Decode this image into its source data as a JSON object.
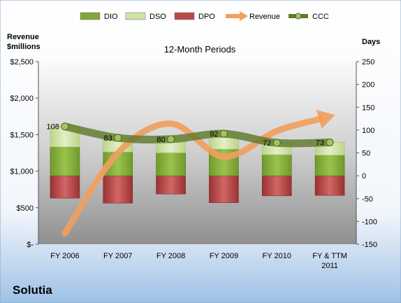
{
  "chart_data": {
    "type": "bar",
    "title": "12-Month Periods",
    "company": "Solutia",
    "y_left_label": [
      "Revenue",
      "$millions"
    ],
    "y_right_label": "Days",
    "categories": [
      [
        "FY 2006"
      ],
      [
        "FY 2007"
      ],
      [
        "FY 2008"
      ],
      [
        "FY 2009"
      ],
      [
        "FY 2010"
      ],
      [
        "FY & TTM",
        "2011"
      ]
    ],
    "y_left_ticks": [
      "$-",
      "$500",
      "$1,000",
      "$1,500",
      "$2,000",
      "$2,500"
    ],
    "y_right_ticks": [
      "-150",
      "-100",
      "-50",
      "0",
      "50",
      "100",
      "150",
      "200",
      "250"
    ],
    "y_left_range": [
      0,
      2500
    ],
    "y_right_range": [
      -150,
      250
    ],
    "legend_position": "top",
    "legend": [
      {
        "name": "DIO",
        "kind": "bar",
        "color": "#82a63a"
      },
      {
        "name": "DSO",
        "kind": "bar",
        "color": "#cfe3a6"
      },
      {
        "name": "DPO",
        "kind": "bar",
        "color": "#b84a4a"
      },
      {
        "name": "Revenue",
        "kind": "arrow",
        "color": "#f0a060"
      },
      {
        "name": "CCC",
        "kind": "line",
        "color": "#5f7a2c"
      }
    ],
    "series": [
      {
        "name": "DIO",
        "axis": "right",
        "values": [
          63,
          52,
          50,
          58,
          46,
          45
        ]
      },
      {
        "name": "DSO",
        "axis": "right",
        "values": [
          45,
          31,
          30,
          34,
          26,
          28
        ]
      },
      {
        "name": "DPO",
        "axis": "right",
        "values": [
          -49,
          -60,
          -40,
          -59,
          -44,
          -43
        ]
      },
      {
        "name": "Revenue",
        "axis": "left",
        "values": [
          150,
          1250,
          1650,
          1200,
          1550,
          1750
        ]
      },
      {
        "name": "CCC",
        "axis": "right",
        "values": [
          108,
          83,
          80,
          92,
          72,
          73
        ]
      }
    ]
  }
}
